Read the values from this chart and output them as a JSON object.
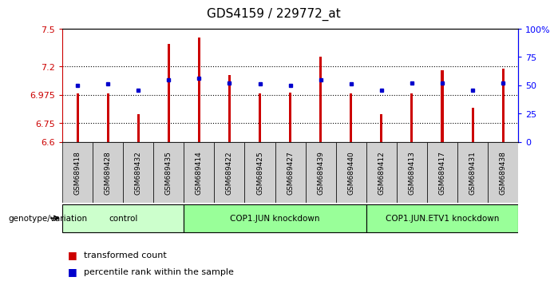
{
  "title": "GDS4159 / 229772_at",
  "samples": [
    "GSM689418",
    "GSM689428",
    "GSM689432",
    "GSM689435",
    "GSM689414",
    "GSM689422",
    "GSM689425",
    "GSM689427",
    "GSM689439",
    "GSM689440",
    "GSM689412",
    "GSM689413",
    "GSM689417",
    "GSM689431",
    "GSM689438"
  ],
  "transformed_counts": [
    6.985,
    6.987,
    6.82,
    7.38,
    7.43,
    7.13,
    6.985,
    6.99,
    7.28,
    6.985,
    6.82,
    6.985,
    7.17,
    6.87,
    7.18
  ],
  "percentile_ranks": [
    50,
    51,
    46,
    55,
    56,
    52,
    51,
    50,
    55,
    51,
    46,
    52,
    52,
    46,
    52
  ],
  "ylim_left": [
    6.6,
    7.5
  ],
  "yticks_left": [
    6.6,
    6.75,
    6.975,
    7.2,
    7.5
  ],
  "ytick_labels_left": [
    "6.6",
    "6.75",
    "6.975",
    "7.2",
    "7.5"
  ],
  "ylim_right": [
    0,
    100
  ],
  "yticks_right": [
    0,
    25,
    50,
    75,
    100
  ],
  "ytick_labels_right": [
    "0",
    "25",
    "50",
    "75",
    "100%"
  ],
  "bar_color": "#cc0000",
  "dot_color": "#0000cc",
  "bar_width": 0.08,
  "background_color": "#ffffff",
  "plot_bg_color": "#ffffff",
  "group_label": "genotype/variation",
  "groups": [
    {
      "label": "control",
      "start": 0,
      "end": 3,
      "color": "#ccffcc"
    },
    {
      "label": "COP1.JUN knockdown",
      "start": 4,
      "end": 9,
      "color": "#99ff99"
    },
    {
      "label": "COP1.JUN.ETV1 knockdown",
      "start": 10,
      "end": 14,
      "color": "#99ff99"
    }
  ],
  "legend_items": [
    {
      "color": "#cc0000",
      "label": "transformed count"
    },
    {
      "color": "#0000cc",
      "label": "percentile rank within the sample"
    }
  ]
}
